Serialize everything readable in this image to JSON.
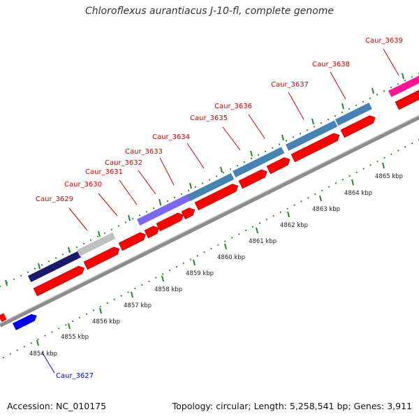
{
  "title": "Chloroflexus aurantiacus J-10-fl, complete genome",
  "footer": {
    "accession": "Accession: NC_010175",
    "summary": "Topology: circular; Length: 5,258,541 bp; Genes: 3,911"
  },
  "colors": {
    "cds_red": "#ff0000",
    "backbone": "#999999",
    "tick_green": "#228b22",
    "label_red": "#cc0000",
    "label_blue": "#0000cc",
    "cog_blue": "#4682b4",
    "cog_navy": "#191970",
    "cog_grey": "#c0c0c0",
    "cog_purple": "#7b68ee",
    "cog_magenta": "#ff1493"
  },
  "ticks": [
    {
      "label": "4854 kbp"
    },
    {
      "label": "4855 kbp"
    },
    {
      "label": "4856 kbp"
    },
    {
      "label": "4857 kbp"
    },
    {
      "label": "4858 kbp"
    },
    {
      "label": "4859 kbp"
    },
    {
      "label": "4860 kbp"
    },
    {
      "label": "4861 kbp"
    },
    {
      "label": "4862 kbp"
    },
    {
      "label": "4863 kbp"
    },
    {
      "label": "4864 kbp"
    },
    {
      "label": "4865 kbp"
    }
  ],
  "genes": [
    {
      "name": "Caur_3627",
      "strand": "reverse",
      "cog_color": "blue"
    },
    {
      "name": "Caur_3629",
      "strand": "forward",
      "cog_color": "navy"
    },
    {
      "name": "Caur_3630",
      "strand": "forward",
      "cog_color": "grey"
    },
    {
      "name": "Caur_3631",
      "strand": "forward",
      "cog_color": "none"
    },
    {
      "name": "Caur_3632",
      "strand": "forward",
      "cog_color": "purple"
    },
    {
      "name": "Caur_3633",
      "strand": "forward",
      "cog_color": "none"
    },
    {
      "name": "Caur_3634",
      "strand": "forward",
      "cog_color": "none"
    },
    {
      "name": "Caur_3635",
      "strand": "forward",
      "cog_color": "steelblue"
    },
    {
      "name": "Caur_3636",
      "strand": "forward",
      "cog_color": "steelblue"
    },
    {
      "name": "Caur_3637",
      "strand": "forward",
      "cog_color": "steelblue"
    },
    {
      "name": "Caur_3638",
      "strand": "forward",
      "cog_color": "steelblue"
    },
    {
      "name": "Caur_3639",
      "strand": "forward",
      "cog_color": "magenta"
    }
  ]
}
